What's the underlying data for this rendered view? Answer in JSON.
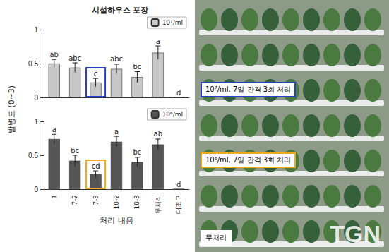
{
  "ylabel": "발병도 (0~3)",
  "chart_data": [
    {
      "type": "bar",
      "title": "시설하우스 포장",
      "categories": [
        "1",
        "7-2",
        "7-3",
        "10-2",
        "10-3",
        "무처리",
        "대조구"
      ],
      "series": [
        {
          "name": "10⁷/ml",
          "color": "#c8c8c8",
          "values": [
            0.5,
            0.44,
            0.22,
            0.42,
            0.3,
            0.66,
            0
          ],
          "errors": [
            0.06,
            0.07,
            0.06,
            0.07,
            0.08,
            0.1,
            0
          ],
          "letters": [
            "ab",
            "abc",
            "c",
            "abc",
            "bc",
            "a",
            "d"
          ]
        }
      ],
      "ylim": [
        0,
        1
      ],
      "yticks": [
        0,
        0.5,
        1
      ],
      "tick_labels": "y",
      "legend": "upper right",
      "highlight": {
        "category": "7-3",
        "color": "#2a3fc4"
      }
    },
    {
      "type": "bar",
      "xlabel": "처리 내용",
      "categories": [
        "1",
        "7-2",
        "7-3",
        "10-2",
        "10-3",
        "무처리",
        "대조구"
      ],
      "series": [
        {
          "name": "10⁶/ml",
          "color": "#555555",
          "values": [
            0.74,
            0.42,
            0.22,
            0.7,
            0.4,
            0.66,
            0
          ],
          "errors": [
            0.07,
            0.08,
            0.05,
            0.08,
            0.07,
            0.08,
            0
          ],
          "letters": [
            "a",
            "bc",
            "cd",
            "a",
            "bc",
            "ab",
            "d"
          ]
        }
      ],
      "ylim": [
        0,
        1
      ],
      "yticks": [
        0,
        0.5,
        1
      ],
      "tick_labels": true,
      "legend": "upper right",
      "highlight": {
        "category": "7-3",
        "color": "#f0a81c"
      }
    }
  ],
  "photo": {
    "labels": [
      {
        "text": "10⁷/ml, 7일 간격 3회 처리",
        "color": "#2a3fc4"
      },
      {
        "text": "10⁶/ml, 7일 간격 3회 처리",
        "color": "#f0a81c"
      },
      {
        "text": "무처리",
        "color": "#ffffff"
      }
    ],
    "watermark": "TGN"
  }
}
